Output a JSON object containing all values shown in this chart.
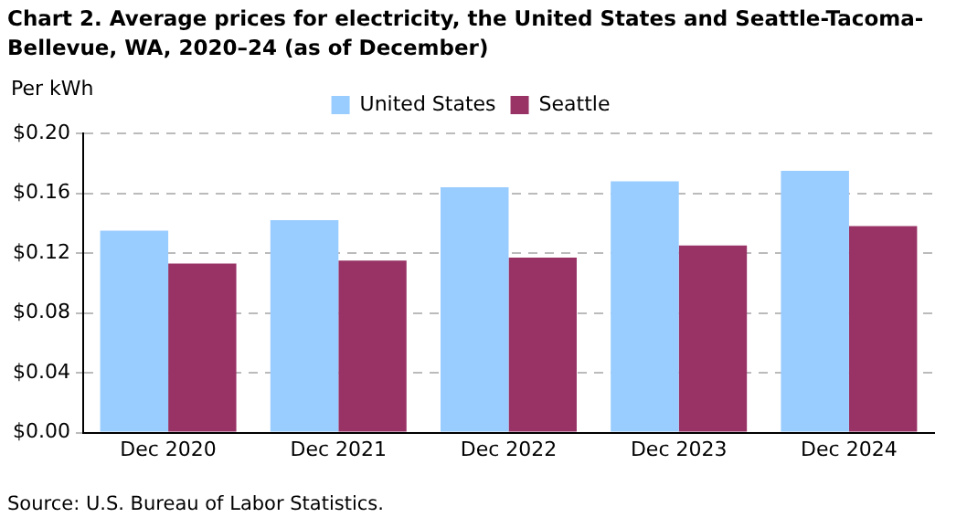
{
  "chart_data": {
    "type": "bar",
    "title": "Chart 2. Average prices for electricity, the United States and Seattle-Tacoma-Bellevue,  WA, 2020–24 (as of December)",
    "ylabel": "Per kWh",
    "annotations": [
      "Source: U.S. Bureau of Labor Statistics."
    ],
    "categories": [
      "Dec 2020",
      "Dec 2021",
      "Dec 2022",
      "Dec 2023",
      "Dec 2024"
    ],
    "series": [
      {
        "name": "United States",
        "color": "#99ccff",
        "values": [
          0.135,
          0.142,
          0.164,
          0.168,
          0.175
        ]
      },
      {
        "name": "Seattle",
        "color": "#993366",
        "values": [
          0.113,
          0.115,
          0.117,
          0.125,
          0.138
        ]
      }
    ],
    "ylim": [
      0,
      0.2
    ],
    "yticks": [
      {
        "value": 0,
        "label": "$0.00"
      },
      {
        "value": 0.04,
        "label": "$0.04"
      },
      {
        "value": 0.08,
        "label": "$0.08"
      },
      {
        "value": 0.12,
        "label": "$0.12"
      },
      {
        "value": 0.16,
        "label": "$0.16"
      },
      {
        "value": 0.2,
        "label": "$0.20"
      }
    ],
    "grid": "y",
    "legend": "top"
  }
}
